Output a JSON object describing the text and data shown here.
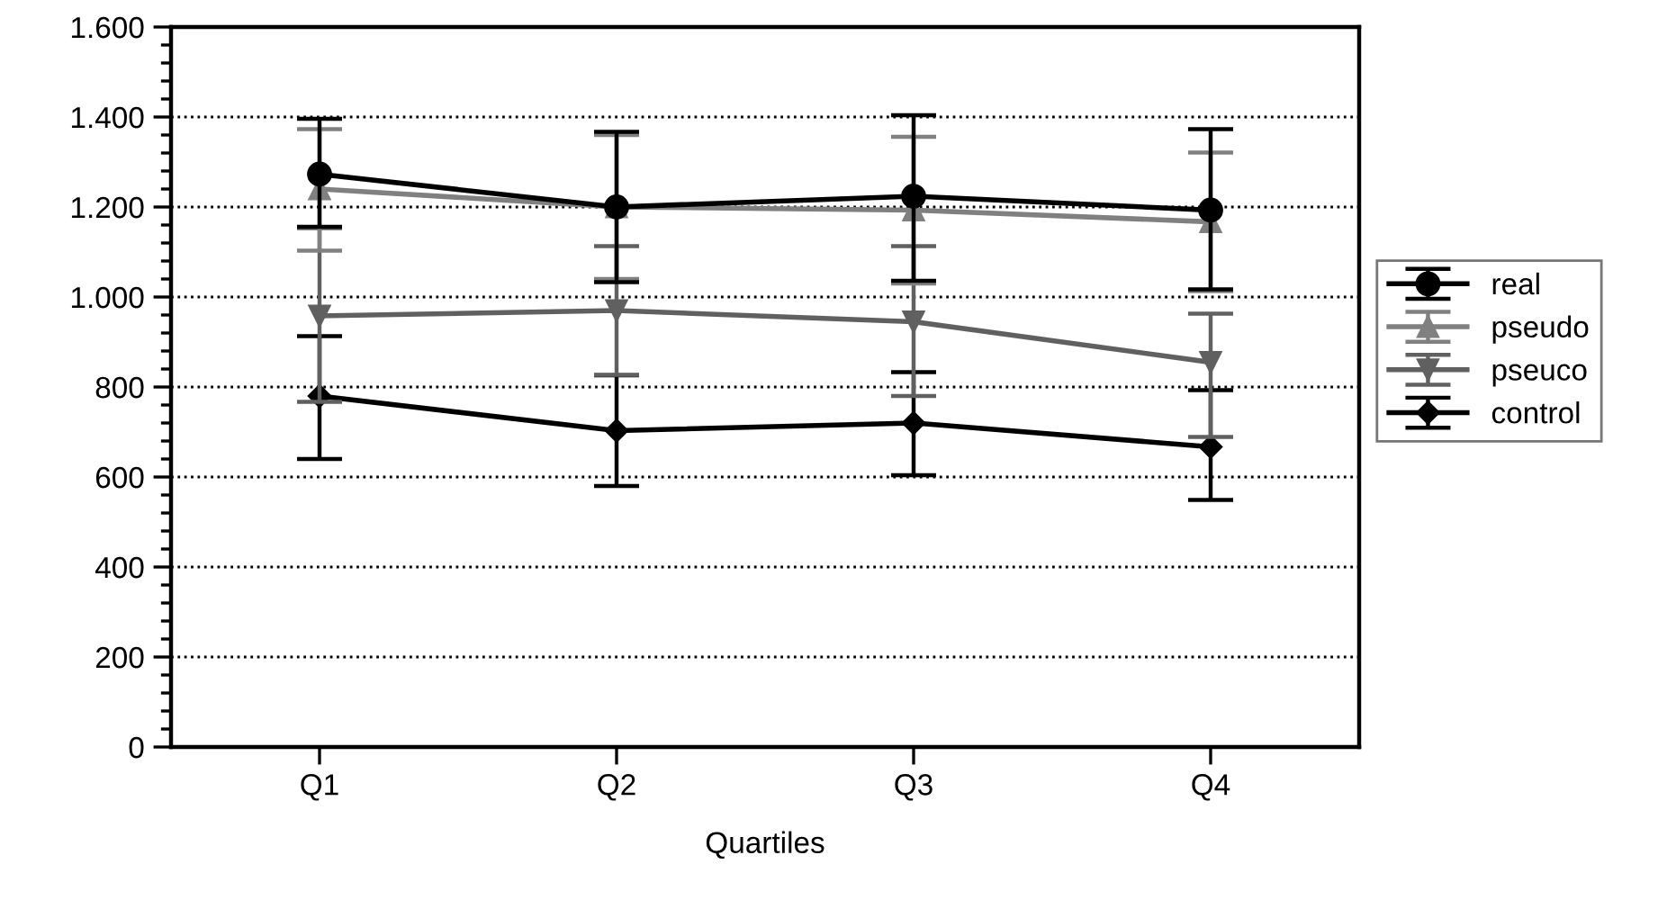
{
  "chart_data": {
    "type": "line",
    "xlabel": "Quartiles",
    "categories": [
      "Q1",
      "Q2",
      "Q3",
      "Q4"
    ],
    "ylim": [
      0,
      1600
    ],
    "yticks": [
      {
        "value": 0,
        "label": "0"
      },
      {
        "value": 200,
        "label": "200"
      },
      {
        "value": 400,
        "label": "400"
      },
      {
        "value": 600,
        "label": "600"
      },
      {
        "value": 800,
        "label": "800"
      },
      {
        "value": 1000,
        "label": "1.000"
      },
      {
        "value": 1200,
        "label": "1.200"
      },
      {
        "value": 1400,
        "label": "1.400"
      },
      {
        "value": 1600,
        "label": "1.600"
      }
    ],
    "grid": "y",
    "legend": "right",
    "line_style": "solid",
    "series": [
      {
        "name": "real",
        "color": "#000000",
        "marker": "circle",
        "values": [
          1273,
          1200,
          1224,
          1193
        ],
        "errors": [
          [
            1156,
            1396
          ],
          [
            1033,
            1367
          ],
          [
            1036,
            1404
          ],
          [
            1017,
            1373
          ]
        ]
      },
      {
        "name": "pseudo",
        "color": "#808080",
        "marker": "triangle",
        "values": [
          1240,
          1200,
          1193,
          1167
        ],
        "errors": [
          [
            1103,
            1373
          ],
          [
            1040,
            1360
          ],
          [
            1030,
            1356
          ],
          [
            1013,
            1321
          ]
        ]
      },
      {
        "name": "pseuco",
        "color": "#606060",
        "marker": "triangle-down",
        "values": [
          958,
          970,
          945,
          855
        ],
        "errors": [
          [
            767,
            1153
          ],
          [
            827,
            1113
          ],
          [
            780,
            1113
          ],
          [
            689,
            963
          ]
        ]
      },
      {
        "name": "control",
        "color": "#000000",
        "marker": "diamond",
        "values": [
          780,
          703,
          720,
          667
        ],
        "errors": [
          [
            640,
            913
          ],
          [
            580,
            826
          ],
          [
            604,
            833
          ],
          [
            549,
            793
          ]
        ]
      }
    ]
  }
}
